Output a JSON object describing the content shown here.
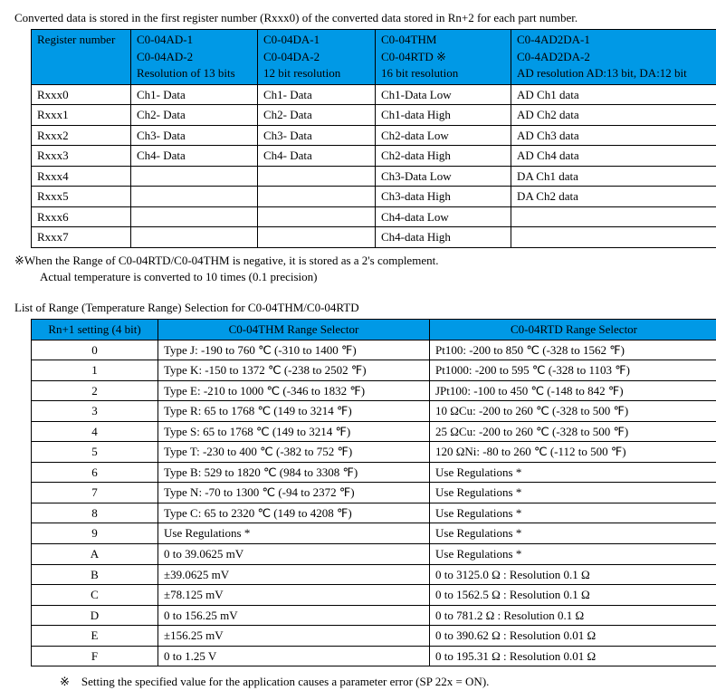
{
  "intro_text": "Converted data is stored in the first register number (Rxxx0) of the converted data stored in Rn+2 for each part number.",
  "table1": {
    "header": {
      "col1": "Register number",
      "col2": [
        "C0-04AD-1",
        "C0-04AD-2",
        "Resolution of 13 bits"
      ],
      "col3": [
        "C0-04DA-1",
        "C0-04DA-2",
        "12 bit resolution"
      ],
      "col4": [
        "C0-04THM",
        "C0-04RTD ※",
        "16 bit resolution"
      ],
      "col5": [
        "C0-4AD2DA-1",
        "C0-4AD2DA-2",
        "AD resolution AD:13 bit, DA:12 bit"
      ]
    },
    "rows": [
      [
        "Rxxx0",
        "Ch1- Data",
        "Ch1- Data",
        "Ch1-Data Low",
        "AD Ch1 data"
      ],
      [
        "Rxxx1",
        "Ch2- Data",
        "Ch2- Data",
        "Ch1-data High",
        "AD Ch2 data"
      ],
      [
        "Rxxx2",
        "Ch3- Data",
        "Ch3- Data",
        "Ch2-data Low",
        "AD Ch3 data"
      ],
      [
        "Rxxx3",
        "Ch4- Data",
        "Ch4- Data",
        "Ch2-data High",
        "AD Ch4 data"
      ],
      [
        "Rxxx4",
        "",
        "",
        "Ch3-Data Low",
        "DA Ch1 data"
      ],
      [
        "Rxxx5",
        "",
        "",
        "Ch3-data High",
        "DA Ch2 data"
      ],
      [
        "Rxxx6",
        "",
        "",
        "Ch4-data Low",
        ""
      ],
      [
        "Rxxx7",
        "",
        "",
        "Ch4-data High",
        ""
      ]
    ]
  },
  "note1": "※When the Range of C0-04RTD/C0-04THM is negative, it is stored as a 2's complement.",
  "note2": "Actual temperature is converted to 10 times (0.1 precision)",
  "section_title": "List of Range (Temperature Range) Selection for C0-04THM/C0-04RTD",
  "table2": {
    "header": {
      "col1": "Rn+1 setting (4 bit)",
      "col2": "C0-04THM Range Selector",
      "col3": "C0-04RTD Range Selector"
    },
    "rows": [
      [
        "0",
        "Type J: -190 to 760 ℃ (-310 to 1400 ℉)",
        "Pt100: -200 to 850 ℃ (-328 to 1562 ℉)"
      ],
      [
        "1",
        "Type K: -150 to 1372 ℃ (-238 to 2502 ℉)",
        "Pt1000: -200 to 595 ℃ (-328 to 1103 ℉)"
      ],
      [
        "2",
        "Type E: -210 to 1000 ℃ (-346 to 1832 ℉)",
        "JPt100: -100 to 450 ℃ (-148 to 842 ℉)"
      ],
      [
        "3",
        "Type R: 65 to 1768 ℃ (149 to 3214 ℉)",
        "10 ΩCu: -200 to 260 ℃ (-328 to 500 ℉)"
      ],
      [
        "4",
        "Type S: 65 to 1768 ℃ (149 to 3214 ℉)",
        "25 ΩCu: -200 to 260 ℃ (-328 to 500 ℉)"
      ],
      [
        "5",
        "Type T: -230 to 400 ℃ (-382 to 752 ℉)",
        "120 ΩNi: -80 to 260 ℃ (-112 to 500 ℉)"
      ],
      [
        "6",
        "Type B: 529 to 1820 ℃ (984 to 3308 ℉)",
        "Use Regulations *"
      ],
      [
        "7",
        "Type N: -70 to 1300 ℃ (-94 to 2372 ℉)",
        "Use Regulations *"
      ],
      [
        "8",
        "Type C: 65 to 2320 ℃ (149 to 4208 ℉)",
        "Use Regulations *"
      ],
      [
        "9",
        "Use Regulations *",
        "Use Regulations *"
      ],
      [
        "A",
        "0 to 39.0625 mV",
        "Use Regulations *"
      ],
      [
        "B",
        "±39.0625 mV",
        "0 to 3125.0 Ω : Resolution 0.1 Ω"
      ],
      [
        "C",
        "±78.125 mV",
        "0 to 1562.5 Ω : Resolution 0.1 Ω"
      ],
      [
        "D",
        "0 to 156.25 mV",
        "0 to 781.2 Ω : Resolution 0.1 Ω"
      ],
      [
        "E",
        "±156.25 mV",
        "0 to 390.62 Ω : Resolution 0.01 Ω"
      ],
      [
        "F",
        "0 to 1.25 V",
        "0 to 195.31 Ω : Resolution 0.01 Ω"
      ]
    ]
  },
  "footnote": "※　Setting the specified value for the application causes a parameter error (SP 22x = ON)."
}
